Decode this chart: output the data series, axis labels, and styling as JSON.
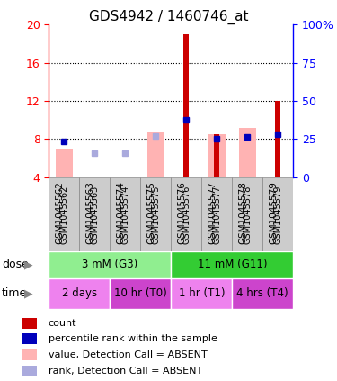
{
  "title": "GDS4942 / 1460746_at",
  "samples": [
    "GSM1045562",
    "GSM1045563",
    "GSM1045574",
    "GSM1045575",
    "GSM1045576",
    "GSM1045577",
    "GSM1045578",
    "GSM1045579"
  ],
  "red_bars": [
    4.1,
    4.1,
    4.1,
    4.1,
    19.0,
    8.5,
    4.1,
    12.0
  ],
  "pink_bars": [
    7.0,
    null,
    null,
    8.8,
    null,
    8.5,
    9.2,
    null
  ],
  "blue_squares": [
    7.8,
    null,
    null,
    null,
    10.0,
    8.0,
    8.2,
    8.5
  ],
  "light_blue_squares": [
    null,
    6.5,
    6.5,
    8.3,
    null,
    null,
    null,
    null
  ],
  "ylim_left": [
    4,
    20
  ],
  "ylim_right": [
    0,
    100
  ],
  "yticks_left": [
    4,
    8,
    12,
    16,
    20
  ],
  "yticks_right": [
    0,
    25,
    50,
    75,
    100
  ],
  "ytick_labels_right": [
    "0",
    "25",
    "50",
    "75",
    "100%"
  ],
  "dose_groups": [
    {
      "label": "3 mM (G3)",
      "start": 0,
      "end": 4,
      "color": "#90ee90"
    },
    {
      "label": "11 mM (G11)",
      "start": 4,
      "end": 8,
      "color": "#33cc33"
    }
  ],
  "time_groups": [
    {
      "label": "2 days",
      "start": 0,
      "end": 2,
      "color": "#ee82ee"
    },
    {
      "label": "10 hr (T0)",
      "start": 2,
      "end": 4,
      "color": "#cc44cc"
    },
    {
      "label": "1 hr (T1)",
      "start": 4,
      "end": 6,
      "color": "#ee82ee"
    },
    {
      "label": "4 hrs (T4)",
      "start": 6,
      "end": 8,
      "color": "#cc44cc"
    }
  ],
  "bar_bottom": 4.0,
  "red_color": "#cc0000",
  "pink_color": "#ffb3b3",
  "blue_color": "#0000bb",
  "light_blue_color": "#aaaadd",
  "legend_items": [
    {
      "color": "#cc0000",
      "label": "count"
    },
    {
      "color": "#0000bb",
      "label": "percentile rank within the sample"
    },
    {
      "color": "#ffb3b3",
      "label": "value, Detection Call = ABSENT"
    },
    {
      "color": "#aaaadd",
      "label": "rank, Detection Call = ABSENT"
    }
  ],
  "sample_col_color": "#cccccc",
  "sample_col_edge": "#888888"
}
